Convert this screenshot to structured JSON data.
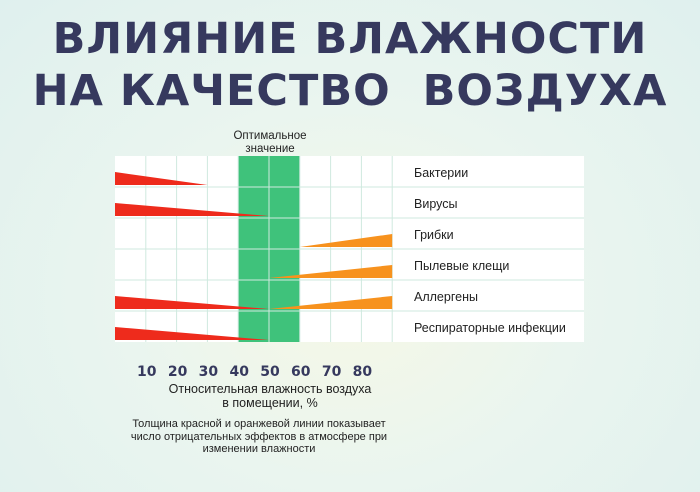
{
  "title_line1": "ВЛИЯНИЕ ВЛАЖНОСТИ",
  "title_line2": "НА КАЧЕСТВО  ВОЗДУХА",
  "optimal_label_line1": "Оптимальное",
  "optimal_label_line2": "значение",
  "xlabel_line1": "Относительная влажность  воздуха",
  "xlabel_line2": "в помещении, %",
  "note_line1": "Толщина красной  и оранжевой линии показывает",
  "note_line2": "число  отрицательных эффектов  в атмосфере при",
  "note_line3": "изменении влажности",
  "colors": {
    "decrease": "#ee2b1c",
    "increase": "#f7921e",
    "optimal": "#3fc27b",
    "title": "#36395e",
    "grid": "#cfe9df"
  },
  "chart_data": {
    "type": "bar",
    "x_ticks": [
      10,
      20,
      30,
      40,
      50,
      60,
      70,
      80
    ],
    "xlim": [
      0,
      90
    ],
    "optimal_range": [
      40,
      60
    ],
    "rows": [
      {
        "label": "Бактерии",
        "bands": [
          {
            "color": "red",
            "from": 0,
            "to": 30,
            "thickness_start": 1.0,
            "thickness_end": 0
          }
        ]
      },
      {
        "label": "Вирусы",
        "bands": [
          {
            "color": "red",
            "from": 0,
            "to": 50,
            "thickness_start": 1.0,
            "thickness_end": 0
          }
        ]
      },
      {
        "label": "Грибки",
        "bands": [
          {
            "color": "orange",
            "from": 60,
            "to": 90,
            "thickness_start": 0,
            "thickness_end": 1.0
          }
        ]
      },
      {
        "label": "Пылевые клещи",
        "bands": [
          {
            "color": "orange",
            "from": 50,
            "to": 90,
            "thickness_start": 0,
            "thickness_end": 1.0
          }
        ]
      },
      {
        "label": "Аллергены",
        "bands": [
          {
            "color": "red",
            "from": 0,
            "to": 50,
            "thickness_start": 1.0,
            "thickness_end": 0
          },
          {
            "color": "orange",
            "from": 50,
            "to": 90,
            "thickness_start": 0,
            "thickness_end": 1.0
          }
        ]
      },
      {
        "label": "Респираторные инфекции",
        "bands": [
          {
            "color": "red",
            "from": 0,
            "to": 50,
            "thickness_start": 1.0,
            "thickness_end": 0
          }
        ]
      }
    ]
  }
}
